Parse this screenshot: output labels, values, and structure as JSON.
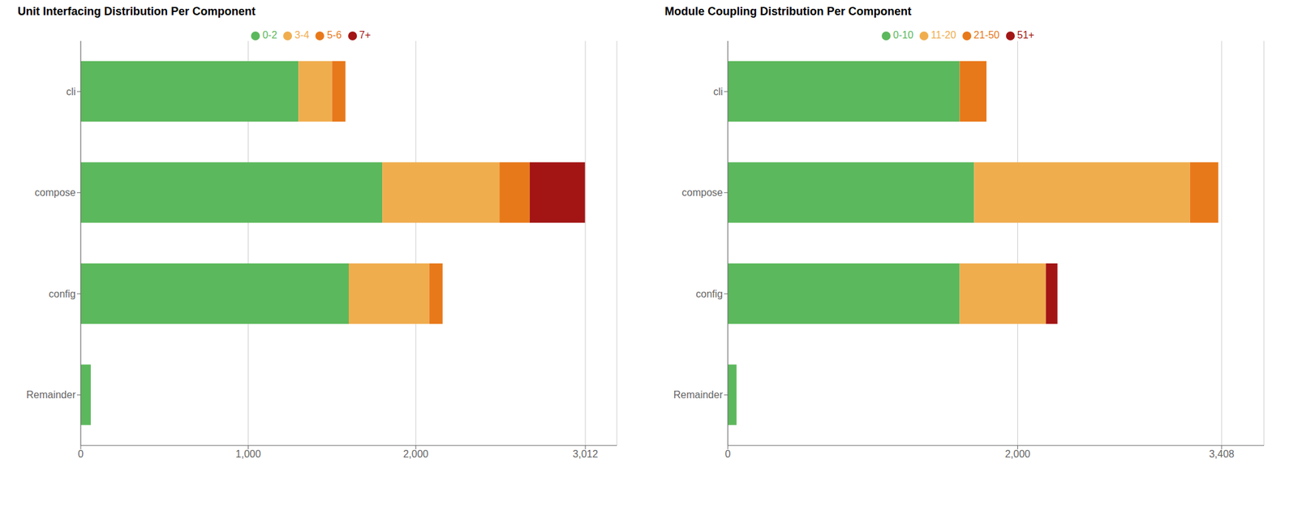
{
  "chart_data": [
    {
      "type": "bar",
      "title": "Unit Interfacing Distribution Per Component",
      "orientation": "horizontal",
      "stacked": true,
      "grid": true,
      "legend": "top",
      "categories": [
        "cli",
        "compose",
        "config",
        "Remainder"
      ],
      "series": [
        {
          "name": "0-2",
          "color": "#5cb85c",
          "values": [
            1300,
            1800,
            1600,
            60
          ]
        },
        {
          "name": "3-4",
          "color": "#f0ad4e",
          "values": [
            200,
            700,
            480,
            0
          ]
        },
        {
          "name": "5-6",
          "color": "#e8791a",
          "values": [
            80,
            180,
            80,
            0
          ]
        },
        {
          "name": "7+",
          "color": "#a31515",
          "values": [
            0,
            330,
            0,
            0
          ]
        }
      ],
      "xlim": [
        0,
        3200
      ],
      "xticks": [
        0,
        {
          "value": 1000,
          "label": "1,000"
        },
        {
          "value": 2000,
          "label": "2,000"
        },
        {
          "value": 3012,
          "label": "3,012"
        }
      ]
    },
    {
      "type": "bar",
      "title": "Module Coupling Distribution Per Component",
      "orientation": "horizontal",
      "stacked": true,
      "grid": true,
      "legend": "top",
      "categories": [
        "cli",
        "compose",
        "config",
        "Remainder"
      ],
      "series": [
        {
          "name": "0-10",
          "color": "#5cb85c",
          "values": [
            1600,
            1700,
            1600,
            60
          ]
        },
        {
          "name": "11-20",
          "color": "#f0ad4e",
          "values": [
            0,
            1490,
            595,
            0
          ]
        },
        {
          "name": "21-50",
          "color": "#e8791a",
          "values": [
            185,
            195,
            0,
            0
          ]
        },
        {
          "name": "51+",
          "color": "#a31515",
          "values": [
            0,
            0,
            80,
            0
          ]
        }
      ],
      "xlim": [
        0,
        3700
      ],
      "xticks": [
        0,
        {
          "value": 2000,
          "label": "2,000"
        },
        {
          "value": 3408,
          "label": "3,408"
        }
      ]
    }
  ]
}
